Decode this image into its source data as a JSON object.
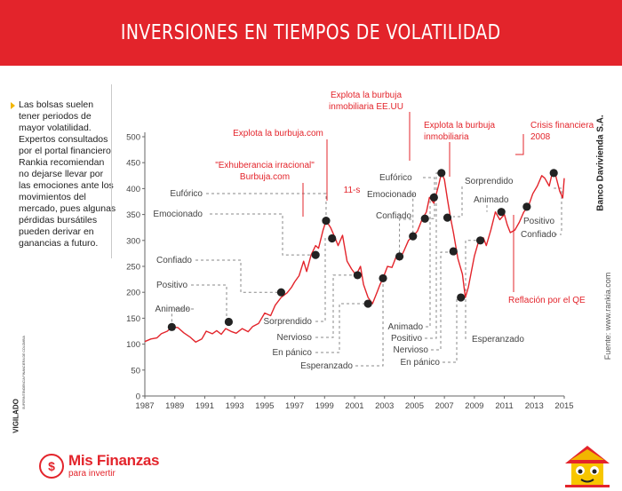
{
  "header": {
    "title": "INVERSIONES EN TIEMPOS DE VOLATILIDAD"
  },
  "sidebar": {
    "text": "Las bolsas suelen tener periodos de mayor volatilidad. Expertos consultados por el portal financiero Rankia recomiendan no dejarse llevar por las emociones ante los movimientos del mercado, pues algunas pérdidas bursátiles pueden derivar en ganancias a futuro."
  },
  "brand": {
    "vertical": "Banco Davivienda S.A.",
    "source": "Fuente: www.rankia.com",
    "vigilado": "VIGILADO",
    "vigilado_small": "SUPERINTENDENCIA FINANCIERA DE COLOMBIA",
    "logo_name": "Mis Finanzas",
    "logo_tagline": "para invertir",
    "logo_symbol": "$"
  },
  "colors": {
    "accent": "#e3242b",
    "line": "#e3242b",
    "marker": "#222222",
    "bullet": "#f2b600"
  },
  "chart_data": {
    "type": "line",
    "title": "",
    "xlabel": "",
    "ylabel": "",
    "xlim": [
      1987,
      2015
    ],
    "ylim": [
      0,
      500
    ],
    "x_ticks": [
      "1987",
      "1989",
      "1991",
      "1993",
      "1995",
      "1997",
      "1999",
      "2001",
      "2003",
      "2005",
      "2007",
      "2009",
      "2011",
      "2013",
      "2015"
    ],
    "y_ticks": [
      "0",
      "50",
      "100",
      "150",
      "200",
      "250",
      "300",
      "350",
      "400",
      "450",
      "500"
    ],
    "grid": false,
    "series": [
      {
        "values": [
          [
            1987.0,
            105
          ],
          [
            1987.4,
            110
          ],
          [
            1987.8,
            112
          ],
          [
            1988.1,
            120
          ],
          [
            1988.5,
            125
          ],
          [
            1988.8,
            133
          ],
          [
            1989.2,
            132
          ],
          [
            1989.6,
            122
          ],
          [
            1990.0,
            114
          ],
          [
            1990.4,
            104
          ],
          [
            1990.8,
            110
          ],
          [
            1991.1,
            125
          ],
          [
            1991.5,
            120
          ],
          [
            1991.8,
            126
          ],
          [
            1992.1,
            119
          ],
          [
            1992.4,
            130
          ],
          [
            1992.8,
            124
          ],
          [
            1993.1,
            121
          ],
          [
            1993.5,
            130
          ],
          [
            1993.9,
            124
          ],
          [
            1994.2,
            134
          ],
          [
            1994.6,
            140
          ],
          [
            1995.0,
            160
          ],
          [
            1995.4,
            155
          ],
          [
            1995.7,
            175
          ],
          [
            1996.1,
            190
          ],
          [
            1996.5,
            199
          ],
          [
            1996.8,
            210
          ],
          [
            1997.0,
            220
          ],
          [
            1997.3,
            232
          ],
          [
            1997.6,
            260
          ],
          [
            1997.8,
            240
          ],
          [
            1998.1,
            272
          ],
          [
            1998.4,
            290
          ],
          [
            1998.6,
            285
          ],
          [
            1998.9,
            320
          ],
          [
            1999.1,
            338
          ],
          [
            1999.4,
            325
          ],
          [
            1999.7,
            305
          ],
          [
            1999.9,
            290
          ],
          [
            2000.2,
            310
          ],
          [
            2000.5,
            260
          ],
          [
            2000.8,
            245
          ],
          [
            2001.1,
            233
          ],
          [
            2001.4,
            250
          ],
          [
            2001.6,
            215
          ],
          [
            2001.9,
            190
          ],
          [
            2002.2,
            178
          ],
          [
            2002.5,
            200
          ],
          [
            2002.7,
            215
          ],
          [
            2002.9,
            227
          ],
          [
            2003.2,
            250
          ],
          [
            2003.5,
            248
          ],
          [
            2003.8,
            270
          ],
          [
            2004.0,
            262
          ],
          [
            2004.3,
            280
          ],
          [
            2004.6,
            300
          ],
          [
            2004.9,
            308
          ],
          [
            2005.2,
            318
          ],
          [
            2005.5,
            340
          ],
          [
            2005.8,
            355
          ],
          [
            2006.0,
            383
          ],
          [
            2006.3,
            372
          ],
          [
            2006.6,
            405
          ],
          [
            2006.8,
            430
          ],
          [
            2007.0,
            418
          ],
          [
            2007.2,
            380
          ],
          [
            2007.4,
            345
          ],
          [
            2007.6,
            315
          ],
          [
            2007.9,
            265
          ],
          [
            2008.2,
            235
          ],
          [
            2008.4,
            190
          ],
          [
            2008.6,
            210
          ],
          [
            2008.8,
            240
          ],
          [
            2009.0,
            270
          ],
          [
            2009.3,
            300
          ],
          [
            2009.6,
            305
          ],
          [
            2009.8,
            290
          ],
          [
            2010.1,
            320
          ],
          [
            2010.4,
            355
          ],
          [
            2010.7,
            340
          ],
          [
            2011.0,
            350
          ],
          [
            2011.2,
            330
          ],
          [
            2011.4,
            315
          ],
          [
            2011.7,
            320
          ],
          [
            2012.0,
            335
          ],
          [
            2012.3,
            355
          ],
          [
            2012.6,
            365
          ],
          [
            2012.9,
            390
          ],
          [
            2013.2,
            405
          ],
          [
            2013.5,
            425
          ],
          [
            2013.7,
            420
          ],
          [
            2014.0,
            405
          ],
          [
            2014.2,
            430
          ],
          [
            2014.4,
            428
          ],
          [
            2014.7,
            395
          ],
          [
            2014.9,
            382
          ],
          [
            2015.0,
            420
          ]
        ]
      }
    ],
    "markers": [
      [
        1988.8,
        133
      ],
      [
        1992.6,
        143
      ],
      [
        1996.1,
        200
      ],
      [
        1998.4,
        272
      ],
      [
        1999.1,
        338
      ],
      [
        1999.5,
        304
      ],
      [
        2001.2,
        233
      ],
      [
        2001.9,
        178
      ],
      [
        2002.9,
        227
      ],
      [
        2004.0,
        269
      ],
      [
        2004.9,
        308
      ],
      [
        2005.7,
        342
      ],
      [
        2006.3,
        383
      ],
      [
        2006.8,
        430
      ],
      [
        2007.2,
        344
      ],
      [
        2007.6,
        279
      ],
      [
        2008.1,
        190
      ],
      [
        2009.4,
        300
      ],
      [
        2010.8,
        355
      ],
      [
        2012.5,
        365
      ],
      [
        2014.3,
        430
      ]
    ],
    "annotations": [
      {
        "text": "Eufórico",
        "side": "left",
        "y": 338
      },
      {
        "text": "Emocionado",
        "side": "left",
        "y": 298
      },
      {
        "text": "Confiado",
        "side": "left",
        "y": 259
      },
      {
        "text": "Positivo",
        "side": "left",
        "y": 221
      },
      {
        "text": "Animado",
        "side": "left",
        "y": 172
      },
      {
        "text": "Sorprendido",
        "side": "below",
        "y": 0
      },
      {
        "text": "Nervioso",
        "side": "below",
        "y": 0
      },
      {
        "text": "En pánico",
        "side": "below",
        "y": 0
      },
      {
        "text": "Esperanzado",
        "side": "below",
        "y": 0
      },
      {
        "text": "Eufórico",
        "side": "upper",
        "y": 0
      },
      {
        "text": "Emocionado",
        "side": "upper",
        "y": 0
      },
      {
        "text": "Confiado",
        "side": "upper",
        "y": 0
      },
      {
        "text": "Animado",
        "side": "below",
        "y": 0
      },
      {
        "text": "Positivo",
        "side": "below",
        "y": 0
      },
      {
        "text": "Nervioso",
        "side": "below",
        "y": 0
      },
      {
        "text": "En pánico",
        "side": "below",
        "y": 0
      },
      {
        "text": "Sorprendido",
        "side": "upper",
        "y": 0
      },
      {
        "text": "Animado",
        "side": "upper",
        "y": 0
      },
      {
        "text": "Esperanzado",
        "side": "below",
        "y": 0
      },
      {
        "text": "Positivo",
        "side": "right",
        "y": 0
      },
      {
        "text": "Confiado",
        "side": "right",
        "y": 0
      }
    ],
    "events": [
      {
        "text": "\"Exhuberancia irracional\"",
        "text2": "Burbuja.com"
      },
      {
        "text": "Explota la burbuja.com",
        "text2": ""
      },
      {
        "text": "Explota la burbuja",
        "text2": "inmobiliaria EE.UU"
      },
      {
        "text": "11-s",
        "text2": ""
      },
      {
        "text": "Explota la burbuja",
        "text2": "inmobiliaria"
      },
      {
        "text": "Crisis financiera",
        "text2": "2008"
      },
      {
        "text": "Reflación por el QE",
        "text2": ""
      }
    ]
  }
}
